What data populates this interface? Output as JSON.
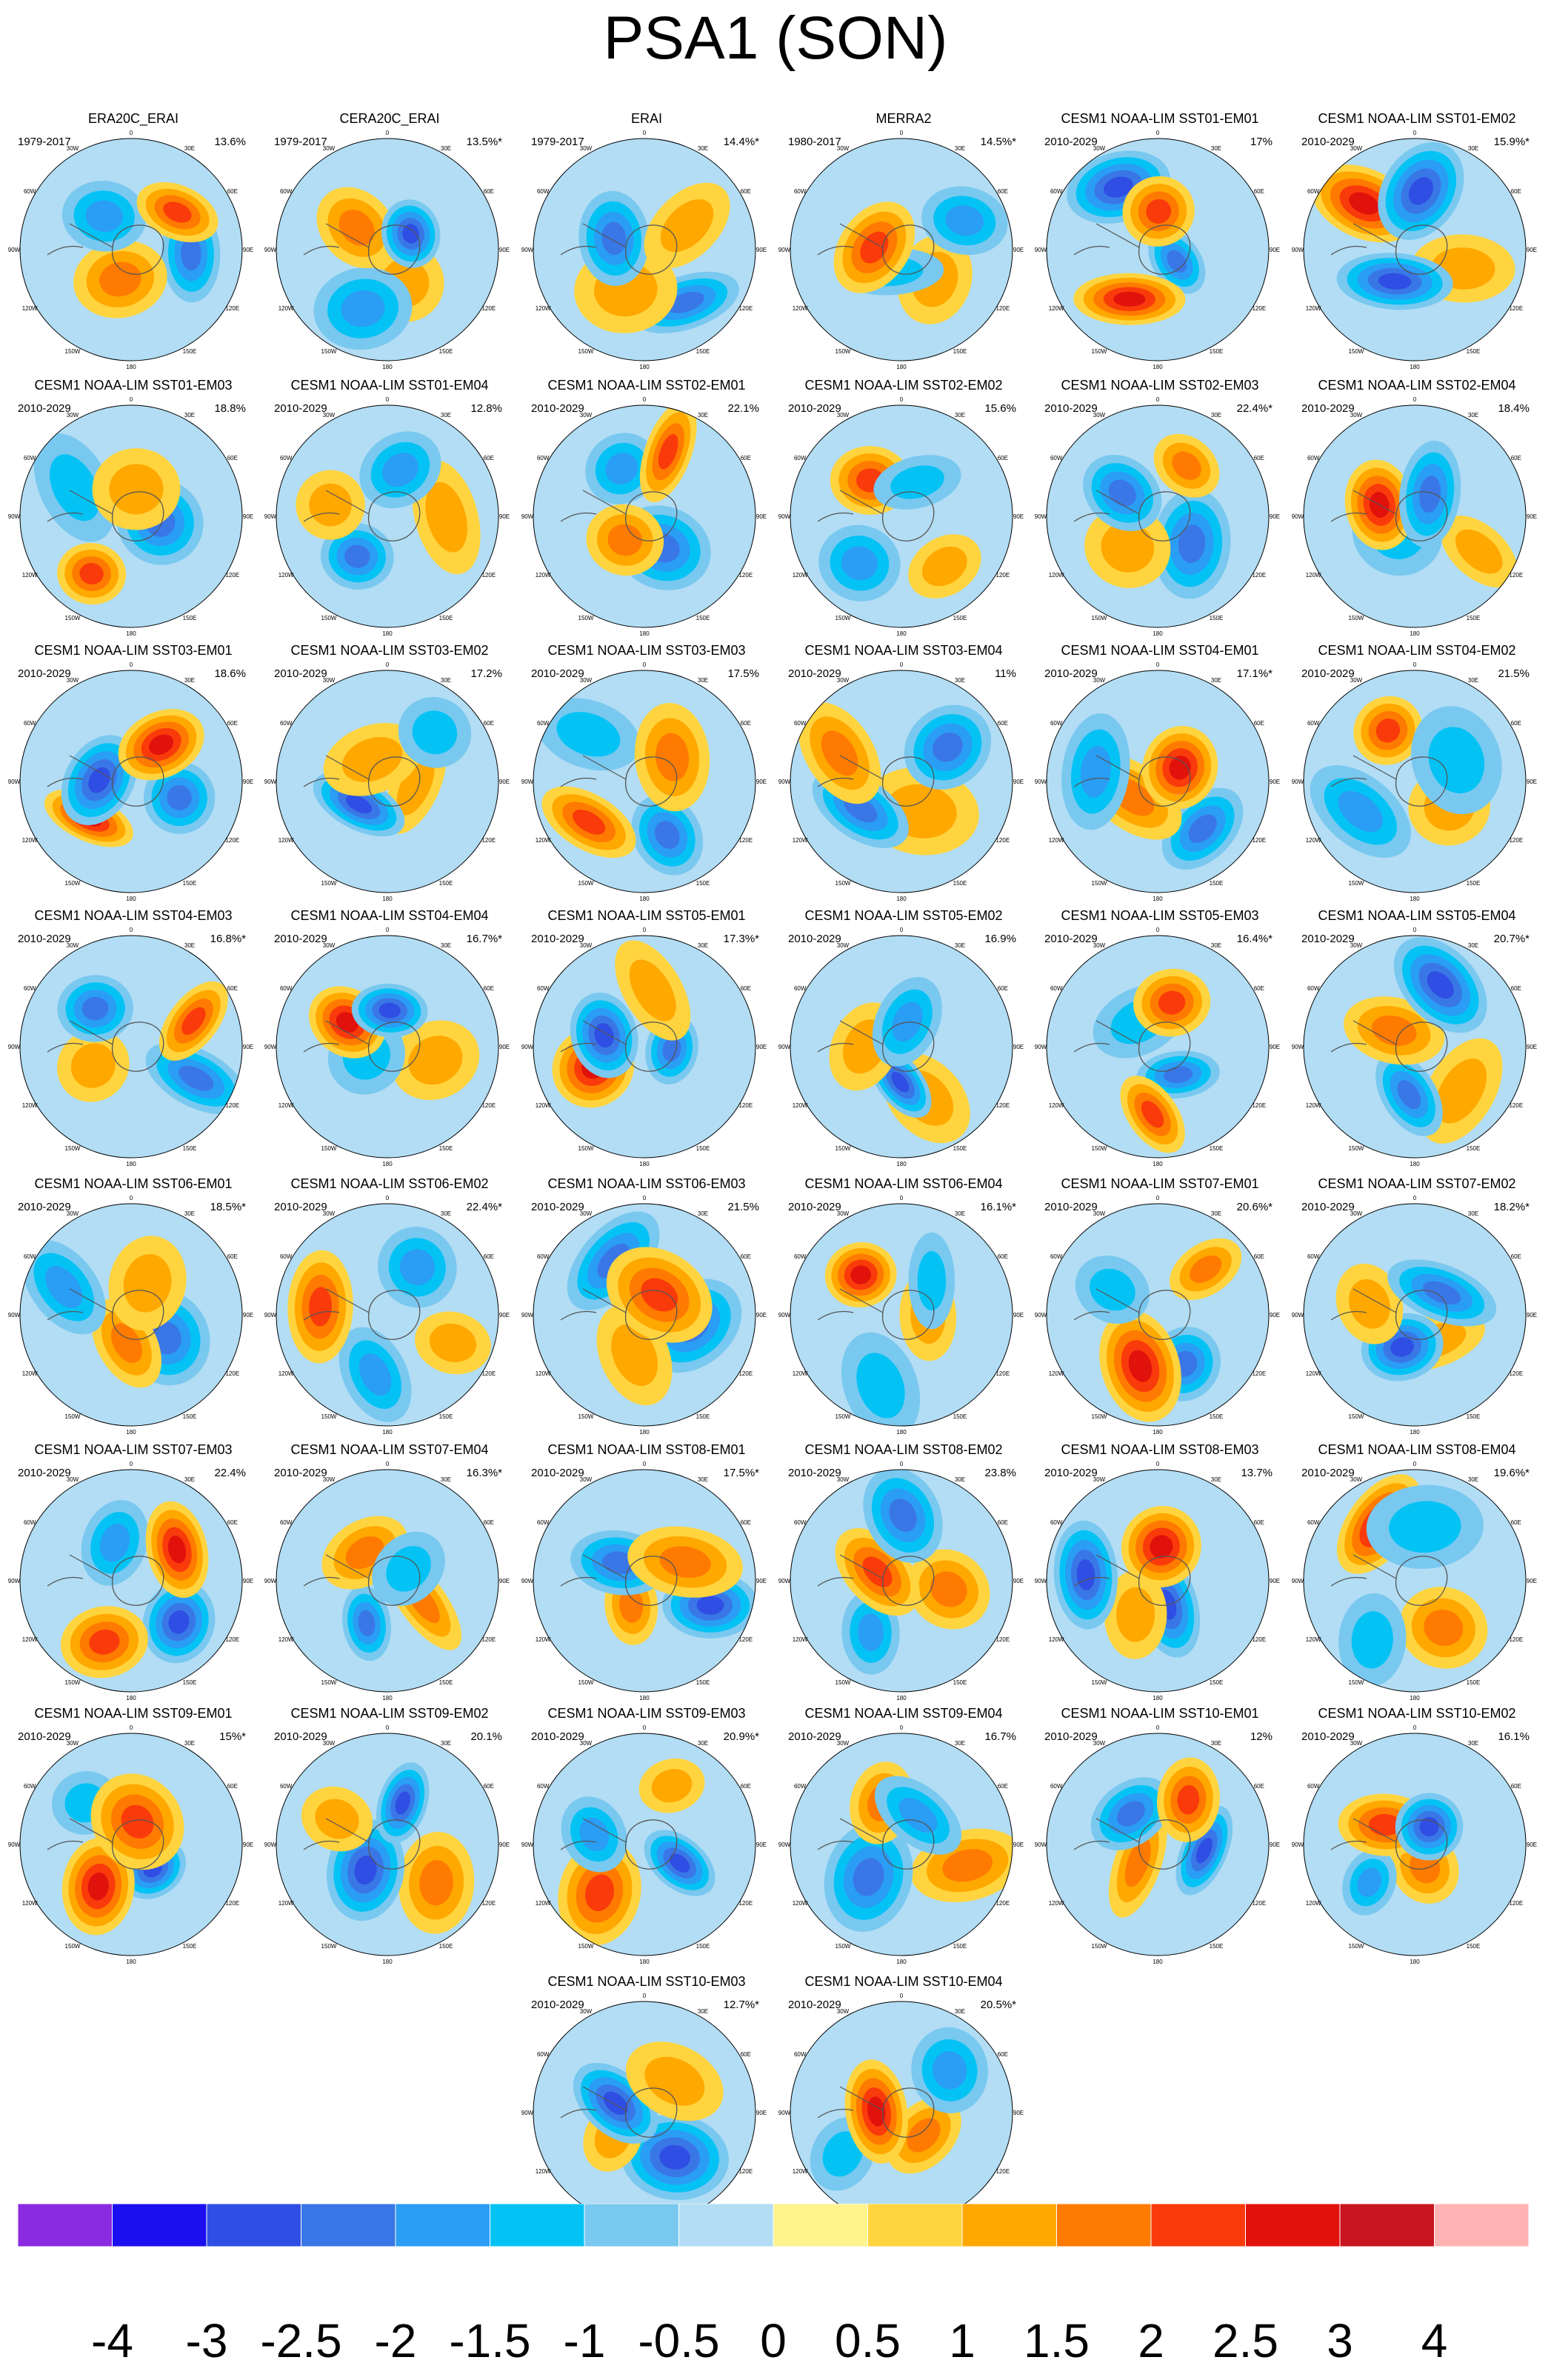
{
  "title": "PSA1 (SON)",
  "map": {
    "lon_labels": [
      "0",
      "30E",
      "60E",
      "90E",
      "120E",
      "150E",
      "180",
      "150W",
      "120W",
      "90W",
      "60W",
      "30W"
    ]
  },
  "panels": [
    {
      "title": "ERA20C_ERAI",
      "period": "1979-2017",
      "pct": "13.6%"
    },
    {
      "title": "CERA20C_ERAI",
      "period": "1979-2017",
      "pct": "13.5%*"
    },
    {
      "title": "ERAI",
      "period": "1979-2017",
      "pct": "14.4%*"
    },
    {
      "title": "MERRA2",
      "period": "1980-2017",
      "pct": "14.5%*"
    },
    {
      "title": "CESM1 NOAA-LIM SST01-EM01",
      "period": "2010-2029",
      "pct": "17%"
    },
    {
      "title": "CESM1 NOAA-LIM SST01-EM02",
      "period": "2010-2029",
      "pct": "15.9%*"
    },
    {
      "title": "CESM1 NOAA-LIM SST01-EM03",
      "period": "2010-2029",
      "pct": "18.8%"
    },
    {
      "title": "CESM1 NOAA-LIM SST01-EM04",
      "period": "2010-2029",
      "pct": "12.8%"
    },
    {
      "title": "CESM1 NOAA-LIM SST02-EM01",
      "period": "2010-2029",
      "pct": "22.1%"
    },
    {
      "title": "CESM1 NOAA-LIM SST02-EM02",
      "period": "2010-2029",
      "pct": "15.6%"
    },
    {
      "title": "CESM1 NOAA-LIM SST02-EM03",
      "period": "2010-2029",
      "pct": "22.4%*"
    },
    {
      "title": "CESM1 NOAA-LIM SST02-EM04",
      "period": "2010-2029",
      "pct": "18.4%"
    },
    {
      "title": "CESM1 NOAA-LIM SST03-EM01",
      "period": "2010-2029",
      "pct": "18.6%"
    },
    {
      "title": "CESM1 NOAA-LIM SST03-EM02",
      "period": "2010-2029",
      "pct": "17.2%"
    },
    {
      "title": "CESM1 NOAA-LIM SST03-EM03",
      "period": "2010-2029",
      "pct": "17.5%"
    },
    {
      "title": "CESM1 NOAA-LIM SST03-EM04",
      "period": "2010-2029",
      "pct": "11%"
    },
    {
      "title": "CESM1 NOAA-LIM SST04-EM01",
      "period": "2010-2029",
      "pct": "17.1%*"
    },
    {
      "title": "CESM1 NOAA-LIM SST04-EM02",
      "period": "2010-2029",
      "pct": "21.5%"
    },
    {
      "title": "CESM1 NOAA-LIM SST04-EM03",
      "period": "2010-2029",
      "pct": "16.8%*"
    },
    {
      "title": "CESM1 NOAA-LIM SST04-EM04",
      "period": "2010-2029",
      "pct": "16.7%*"
    },
    {
      "title": "CESM1 NOAA-LIM SST05-EM01",
      "period": "2010-2029",
      "pct": "17.3%*"
    },
    {
      "title": "CESM1 NOAA-LIM SST05-EM02",
      "period": "2010-2029",
      "pct": "16.9%"
    },
    {
      "title": "CESM1 NOAA-LIM SST05-EM03",
      "period": "2010-2029",
      "pct": "16.4%*"
    },
    {
      "title": "CESM1 NOAA-LIM SST05-EM04",
      "period": "2010-2029",
      "pct": "20.7%*"
    },
    {
      "title": "CESM1 NOAA-LIM SST06-EM01",
      "period": "2010-2029",
      "pct": "18.5%*"
    },
    {
      "title": "CESM1 NOAA-LIM SST06-EM02",
      "period": "2010-2029",
      "pct": "22.4%*"
    },
    {
      "title": "CESM1 NOAA-LIM SST06-EM03",
      "period": "2010-2029",
      "pct": "21.5%"
    },
    {
      "title": "CESM1 NOAA-LIM SST06-EM04",
      "period": "2010-2029",
      "pct": "16.1%*"
    },
    {
      "title": "CESM1 NOAA-LIM SST07-EM01",
      "period": "2010-2029",
      "pct": "20.6%*"
    },
    {
      "title": "CESM1 NOAA-LIM SST07-EM02",
      "period": "2010-2029",
      "pct": "18.2%*"
    },
    {
      "title": "CESM1 NOAA-LIM SST07-EM03",
      "period": "2010-2029",
      "pct": "22.4%"
    },
    {
      "title": "CESM1 NOAA-LIM SST07-EM04",
      "period": "2010-2029",
      "pct": "16.3%*"
    },
    {
      "title": "CESM1 NOAA-LIM SST08-EM01",
      "period": "2010-2029",
      "pct": "17.5%*"
    },
    {
      "title": "CESM1 NOAA-LIM SST08-EM02",
      "period": "2010-2029",
      "pct": "23.8%"
    },
    {
      "title": "CESM1 NOAA-LIM SST08-EM03",
      "period": "2010-2029",
      "pct": "13.7%"
    },
    {
      "title": "CESM1 NOAA-LIM SST08-EM04",
      "period": "2010-2029",
      "pct": "19.6%*"
    },
    {
      "title": "CESM1 NOAA-LIM SST09-EM01",
      "period": "2010-2029",
      "pct": "15%*"
    },
    {
      "title": "CESM1 NOAA-LIM SST09-EM02",
      "period": "2010-2029",
      "pct": "20.1%"
    },
    {
      "title": "CESM1 NOAA-LIM SST09-EM03",
      "period": "2010-2029",
      "pct": "20.9%*"
    },
    {
      "title": "CESM1 NOAA-LIM SST09-EM04",
      "period": "2010-2029",
      "pct": "16.7%"
    },
    {
      "title": "CESM1 NOAA-LIM SST10-EM01",
      "period": "2010-2029",
      "pct": "12%"
    },
    {
      "title": "CESM1 NOAA-LIM SST10-EM02",
      "period": "2010-2029",
      "pct": "16.1%"
    },
    {
      "title": "CESM1 NOAA-LIM SST10-EM03",
      "period": "2010-2029",
      "pct": "12.7%*"
    },
    {
      "title": "CESM1 NOAA-LIM SST10-EM04",
      "period": "2010-2029",
      "pct": "20.5%*"
    }
  ],
  "colorbar": {
    "labels": [
      "-4",
      "-3",
      "-2.5",
      "-2",
      "-1.5",
      "-1",
      "-0.5",
      "0",
      "0.5",
      "1",
      "1.5",
      "2",
      "2.5",
      "3",
      "4"
    ],
    "colors": [
      "#8a2be2",
      "#1b0ff0",
      "#2f4ee3",
      "#3a77e6",
      "#2a9df5",
      "#04c3f4",
      "#79c8f0",
      "#b2ddf4",
      "#fff38c",
      "#ffd43e",
      "#ffa800",
      "#ff7a00",
      "#f93a0b",
      "#e1110c",
      "#c8151f",
      "#ffb3b3"
    ]
  }
}
